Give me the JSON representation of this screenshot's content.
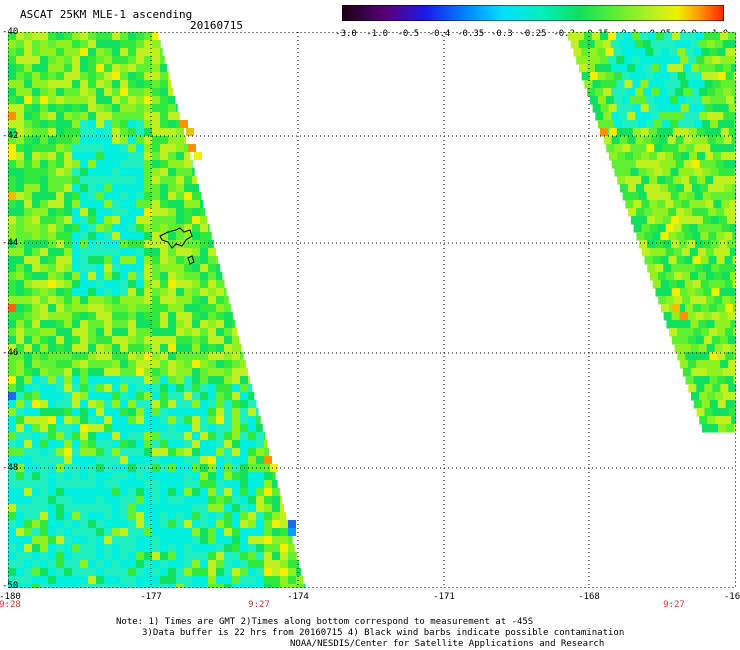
{
  "header": {
    "title": "ASCAT 25KM MLE-1 ascending",
    "date": "20160715"
  },
  "colorbar": {
    "labels": [
      "-3.0",
      "-1.0",
      "-0.5",
      "-0.4",
      "-0.35",
      "-0.3",
      "-0.25",
      "-0.2",
      "-0.15",
      "-0.1",
      "-0.05",
      "0.0",
      "1.0"
    ],
    "colors": [
      "#1a0010",
      "#5a0080",
      "#2a20e0",
      "#0060ff",
      "#00a8ff",
      "#00e8f0",
      "#00e8b0",
      "#10e060",
      "#50f030",
      "#b0f020",
      "#f0f000",
      "#ff9000",
      "#ff3000"
    ]
  },
  "map": {
    "y_ticks": [
      "-40",
      "-42",
      "-44",
      "-46",
      "-48",
      "-50"
    ],
    "x_ticks": [
      "-180",
      "-177",
      "-174",
      "-171",
      "-168",
      "-16"
    ],
    "time_labels": [
      "9:28",
      "9:27",
      "9:27"
    ]
  },
  "footer": {
    "line1": "Note: 1) Times are GMT 2)Times along bottom correspond to measurement at -45S",
    "line2": "3)Data buffer is 22 hrs from 20160715 4) Black wind barbs indicate possible contamination",
    "line3": "NOAA/NESDIS/Center for Satellite Applications and Research"
  }
}
